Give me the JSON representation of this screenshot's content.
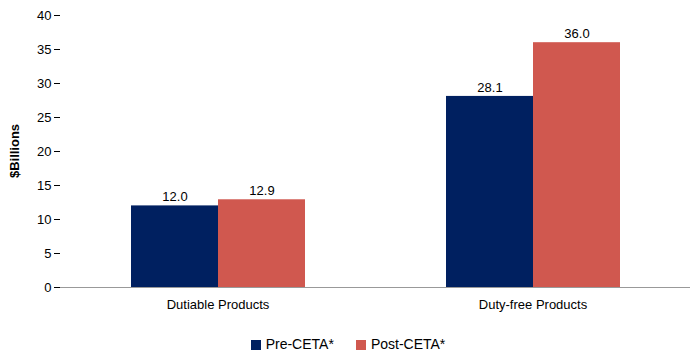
{
  "chart_data": {
    "type": "bar",
    "categories": [
      "Dutiable Products",
      "Duty-free Products"
    ],
    "series": [
      {
        "name": "Pre-CETA*",
        "color": "#002060",
        "values": [
          12.0,
          28.1
        ],
        "value_labels": [
          "12.0",
          "28.1"
        ]
      },
      {
        "name": "Post-CETA*",
        "color": "#D0584F",
        "values": [
          12.9,
          36.0
        ],
        "value_labels": [
          "12.9",
          "36.0"
        ]
      }
    ],
    "ylabel": "$Billions",
    "ylim": [
      0,
      40
    ],
    "yticks": [
      0,
      5,
      10,
      15,
      20,
      25,
      30,
      35,
      40
    ],
    "grid": false,
    "legend": "bottom",
    "data_labels": true
  }
}
